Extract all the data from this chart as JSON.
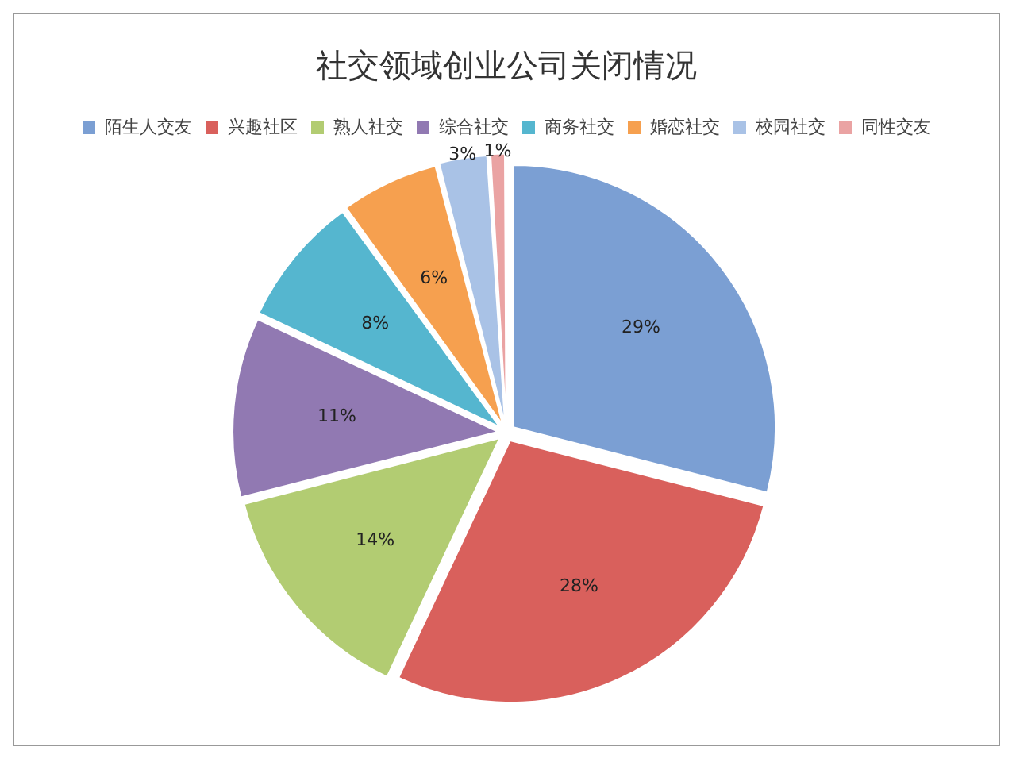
{
  "chart_data": {
    "type": "pie",
    "title": "社交领域创业公司关闭情况",
    "categories": [
      "陌生人交友",
      "兴趣社区",
      "熟人社交",
      "综合社交",
      "商务社交",
      "婚恋社交",
      "校园社交",
      "同性交友"
    ],
    "values": [
      29,
      28,
      14,
      11,
      8,
      6,
      3,
      1
    ],
    "colors": [
      "#7b9fd3",
      "#d9605c",
      "#b2cc72",
      "#9179b2",
      "#55b6cf",
      "#f6a04f",
      "#a9c2e6",
      "#eaa3a3"
    ],
    "value_labels": [
      "29%",
      "28%",
      "14%",
      "11%",
      "8%",
      "6%",
      "3%",
      "1%"
    ],
    "legend": "top"
  }
}
